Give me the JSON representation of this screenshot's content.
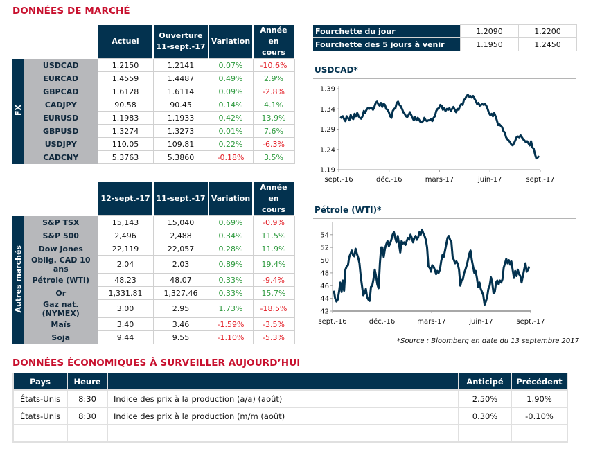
{
  "market_title": "DONNÉES DE MARCHÉ",
  "fx_table": {
    "side_label": "FX",
    "headers": [
      "Actuel",
      "Ouverture",
      "11-sept.-17",
      "Variation",
      "Année en",
      "cours"
    ],
    "rows": [
      {
        "name": "USDCAD",
        "current": "1.2150",
        "open": "1.2141",
        "change": "0.07%",
        "ytd": "-10.6%",
        "change_sign": "pos",
        "ytd_sign": "neg"
      },
      {
        "name": "EURCAD",
        "current": "1.4559",
        "open": "1.4487",
        "change": "0.49%",
        "ytd": "2.9%",
        "change_sign": "pos",
        "ytd_sign": "pos"
      },
      {
        "name": "GBPCAD",
        "current": "1.6128",
        "open": "1.6114",
        "change": "0.09%",
        "ytd": "-2.8%",
        "change_sign": "pos",
        "ytd_sign": "neg"
      },
      {
        "name": "CADJPY",
        "current": "90.58",
        "open": "90.45",
        "change": "0.14%",
        "ytd": "4.1%",
        "change_sign": "pos",
        "ytd_sign": "pos"
      },
      {
        "name": "EURUSD",
        "current": "1.1983",
        "open": "1.1933",
        "change": "0.42%",
        "ytd": "13.9%",
        "change_sign": "pos",
        "ytd_sign": "pos"
      },
      {
        "name": "GBPUSD",
        "current": "1.3274",
        "open": "1.3273",
        "change": "0.01%",
        "ytd": "7.6%",
        "change_sign": "pos",
        "ytd_sign": "pos"
      },
      {
        "name": "USDJPY",
        "current": "110.05",
        "open": "109.81",
        "change": "0.22%",
        "ytd": "-6.3%",
        "change_sign": "pos",
        "ytd_sign": "neg"
      },
      {
        "name": "CADCNY",
        "current": "5.3763",
        "open": "5.3860",
        "change": "-0.18%",
        "ytd": "3.5%",
        "change_sign": "neg",
        "ytd_sign": "pos"
      }
    ]
  },
  "other_table": {
    "side_label": "Autres marchés",
    "headers": [
      "12-sept.-17",
      "11-sept.-17",
      "Variation",
      "Année en",
      "cours"
    ],
    "rows": [
      {
        "name": "S&P TSX",
        "current": "15,143",
        "open": "15,040",
        "change": "0.69%",
        "ytd": "-0.9%",
        "change_sign": "pos",
        "ytd_sign": "neg"
      },
      {
        "name": "S&P 500",
        "current": "2,496",
        "open": "2,488",
        "change": "0.34%",
        "ytd": "11.5%",
        "change_sign": "pos",
        "ytd_sign": "pos"
      },
      {
        "name": "Dow Jones",
        "current": "22,119",
        "open": "22,057",
        "change": "0.28%",
        "ytd": "11.9%",
        "change_sign": "pos",
        "ytd_sign": "pos"
      },
      {
        "name": "Oblig. CAD 10 ans",
        "current": "2.04",
        "open": "2.03",
        "change": "0.89%",
        "ytd": "19.4%",
        "change_sign": "pos",
        "ytd_sign": "pos"
      },
      {
        "name": "Pétrole (WTI)",
        "current": "48.23",
        "open": "48.07",
        "change": "0.33%",
        "ytd": "-9.4%",
        "change_sign": "pos",
        "ytd_sign": "neg"
      },
      {
        "name": "Or",
        "current": "1,331.81",
        "open": "1,327.46",
        "change": "0.33%",
        "ytd": "15.7%",
        "change_sign": "pos",
        "ytd_sign": "pos"
      },
      {
        "name": "Gaz nat. (NYMEX)",
        "current": "3.00",
        "open": "2.95",
        "change": "1.73%",
        "ytd": "-18.5%",
        "change_sign": "pos",
        "ytd_sign": "neg"
      },
      {
        "name": "Maïs",
        "current": "3.40",
        "open": "3.46",
        "change": "-1.59%",
        "ytd": "-3.5%",
        "change_sign": "neg",
        "ytd_sign": "neg"
      },
      {
        "name": "Soja",
        "current": "9.44",
        "open": "9.55",
        "change": "-1.10%",
        "ytd": "-5.3%",
        "change_sign": "neg",
        "ytd_sign": "neg"
      }
    ]
  },
  "range_table": {
    "rows": [
      {
        "label": "Fourchette du jour",
        "low": "1.2090",
        "high": "1.2200"
      },
      {
        "label": "Fourchette des 5 jours à venir",
        "low": "1.1950",
        "high": "1.2450"
      }
    ]
  },
  "colors": {
    "navy": "#03324f",
    "red_title": "#c8102e",
    "positive": "#2e9a3e",
    "negative": "#e21a22",
    "label_gray": "#b7b8bb"
  },
  "chart_data": [
    {
      "type": "line",
      "title": "USDCAD*",
      "xlabel": "",
      "ylabel": "",
      "x_ticks": [
        "sept.-16",
        "déc.-16",
        "mars-17",
        "juin-17",
        "sept.-17"
      ],
      "y_ticks": [
        "1.19",
        "1.24",
        "1.29",
        "1.34",
        "1.39"
      ],
      "ylim": [
        1.19,
        1.39
      ],
      "grid": false,
      "series": [
        {
          "name": "USDCAD",
          "values": [
            1.32,
            1.318,
            1.322,
            1.315,
            1.31,
            1.322,
            1.317,
            1.312,
            1.325,
            1.318,
            1.315,
            1.328,
            1.322,
            1.33,
            1.322,
            1.318,
            1.316,
            1.322,
            1.335,
            1.33,
            1.338,
            1.342,
            1.34,
            1.343,
            1.342,
            1.338,
            1.345,
            1.355,
            1.358,
            1.352,
            1.348,
            1.355,
            1.345,
            1.353,
            1.35,
            1.34,
            1.338,
            1.332,
            1.322,
            1.318,
            1.335,
            1.34,
            1.342,
            1.355,
            1.358,
            1.35,
            1.347,
            1.34,
            1.332,
            1.328,
            1.322,
            1.32,
            1.325,
            1.332,
            1.325,
            1.318,
            1.312,
            1.32,
            1.312,
            1.318,
            1.313,
            1.308,
            1.307,
            1.31,
            1.318,
            1.312,
            1.31,
            1.312,
            1.312,
            1.315,
            1.31,
            1.318,
            1.322,
            1.335,
            1.34,
            1.342,
            1.35,
            1.348,
            1.338,
            1.342,
            1.335,
            1.34,
            1.338,
            1.342,
            1.335,
            1.34,
            1.345,
            1.338,
            1.332,
            1.34,
            1.338,
            1.348,
            1.352,
            1.35,
            1.362,
            1.365,
            1.372,
            1.375,
            1.37,
            1.372,
            1.368,
            1.372,
            1.365,
            1.36,
            1.352,
            1.355,
            1.348,
            1.35,
            1.352,
            1.35,
            1.352,
            1.348,
            1.34,
            1.33,
            1.325,
            1.328,
            1.322,
            1.33,
            1.322,
            1.312,
            1.3,
            1.302,
            1.298,
            1.295,
            1.285,
            1.282,
            1.27,
            1.265,
            1.262,
            1.258,
            1.252,
            1.25,
            1.255,
            1.262,
            1.27,
            1.272,
            1.27,
            1.275,
            1.27,
            1.265,
            1.262,
            1.258,
            1.26,
            1.255,
            1.25,
            1.26,
            1.245,
            1.242,
            1.228,
            1.218,
            1.22,
            1.224
          ]
        }
      ]
    },
    {
      "type": "line",
      "title": "Pétrole (WTI)*",
      "xlabel": "",
      "ylabel": "",
      "x_ticks": [
        "sept.-16",
        "déc.-16",
        "mars-17",
        "juin-17",
        "sept.-17"
      ],
      "y_ticks": [
        "42",
        "44",
        "46",
        "48",
        "50",
        "52",
        "54"
      ],
      "ylim": [
        42,
        55.5
      ],
      "grid": false,
      "series": [
        {
          "name": "WTI",
          "values": [
            45.2,
            44.0,
            43.5,
            43.8,
            45.0,
            46.5,
            45.0,
            46.8,
            45.2,
            48.5,
            49.0,
            49.2,
            50.5,
            51.0,
            51.5,
            50.8,
            50.6,
            51.8,
            51.0,
            50.4,
            49.5,
            47.5,
            46.0,
            44.5,
            44.8,
            45.5,
            44.2,
            43.8,
            43.6,
            45.8,
            46.0,
            47.0,
            48.5,
            47.5,
            46.2,
            45.6,
            49.5,
            52.0,
            52.0,
            50.5,
            51.8,
            52.5,
            53.0,
            52.2,
            52.6,
            53.2,
            54.0,
            54.4,
            53.5,
            52.8,
            53.8,
            52.5,
            51.2,
            53.0,
            52.6,
            52.8,
            52.4,
            53.0,
            53.5,
            53.2,
            54.0,
            53.5,
            52.8,
            53.5,
            53.8,
            53.2,
            53.6,
            54.4,
            54.0,
            54.8,
            54.2,
            53.8,
            53.2,
            52.0,
            49.0,
            48.8,
            48.2,
            49.2,
            49.0,
            48.5,
            47.8,
            48.3,
            48.0,
            48.5,
            49.8,
            50.8,
            50.5,
            51.5,
            52.5,
            53.5,
            53.8,
            53.2,
            52.8,
            50.5,
            50.0,
            49.5,
            49.8,
            49.4,
            48.5,
            46.0,
            46.8,
            47.0,
            48.0,
            48.5,
            49.2,
            50.0,
            51.0,
            51.5,
            50.0,
            49.0,
            48.0,
            48.3,
            47.2,
            45.8,
            46.5,
            45.5,
            45.0,
            44.5,
            43.0,
            43.5,
            44.2,
            45.5,
            46.0,
            47.3,
            46.5,
            44.8,
            45.0,
            46.5,
            46.8,
            46.2,
            46.8,
            46.5,
            47.0,
            48.8,
            49.5,
            50.2,
            49.5,
            50.0,
            49.3,
            49.8,
            48.5,
            47.2,
            48.3,
            47.5,
            48.5,
            47.8,
            47.5,
            46.5,
            47.5,
            48.5,
            49.5,
            48.2,
            48.5,
            49.0
          ]
        }
      ]
    }
  ],
  "source_note": "*Source : Bloomberg en date du  13 septembre 2017",
  "eco_title": "DONNÉES ÉCONOMIQUES À SURVEILLER AUJOURD’HUI",
  "eco_table": {
    "headers": [
      "Pays",
      "Heure",
      "",
      "Anticipé",
      "Précédent"
    ],
    "rows": [
      {
        "country": "États-Unis",
        "time": "8:30",
        "indicator": "Indice des prix à la production (a/a) (août)",
        "expected": "2.50%",
        "previous": "1.90%"
      },
      {
        "country": "États-Unis",
        "time": "8:30",
        "indicator": "Indice des prix à la production (m/m (août)",
        "expected": "0.30%",
        "previous": "-0.10%"
      },
      {
        "country": "",
        "time": "",
        "indicator": "",
        "expected": "",
        "previous": ""
      }
    ]
  }
}
